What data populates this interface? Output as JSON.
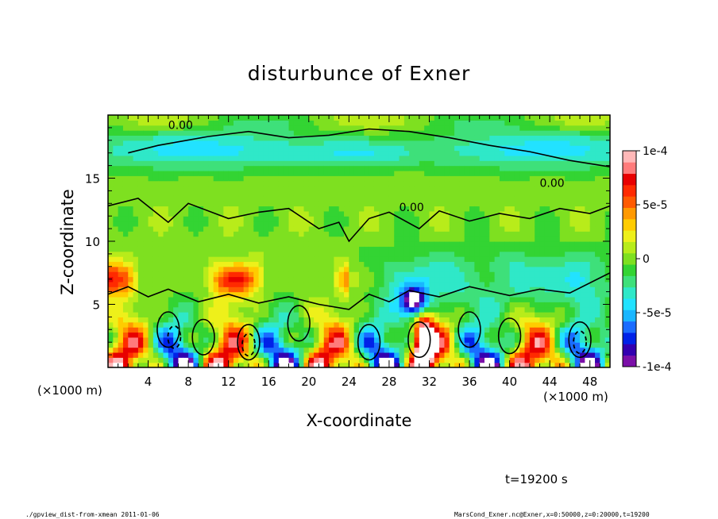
{
  "chart_data": {
    "type": "heatmap",
    "title": "disturbunce of Exner",
    "xlabel": "X-coordinate",
    "ylabel": "Z-coordinate",
    "x_units": "(×1000 m)",
    "y_units": "(×1000 m)",
    "xlim": [
      0,
      50
    ],
    "ylim": [
      0,
      20
    ],
    "x_ticks": [
      4,
      8,
      12,
      16,
      20,
      24,
      28,
      32,
      36,
      40,
      44,
      48
    ],
    "y_ticks": [
      5,
      10,
      15
    ],
    "colorbar": {
      "range": [
        -0.0001,
        0.0001
      ],
      "labels": [
        {
          "value": 0.0001,
          "text": "1e-4"
        },
        {
          "value": 5e-05,
          "text": "5e-5"
        },
        {
          "value": 0,
          "text": "0"
        },
        {
          "value": -5e-05,
          "text": "-5e-5"
        },
        {
          "value": -0.0001,
          "text": "-1e-4"
        }
      ],
      "colors": [
        "#7b0fa8",
        "#3300b0",
        "#0022e8",
        "#1a6cff",
        "#19b6ff",
        "#22e2ff",
        "#2fe8c8",
        "#3ee07a",
        "#33d433",
        "#7ee020",
        "#b8ec1a",
        "#eef01a",
        "#ffcc00",
        "#ff9900",
        "#ff5a00",
        "#ff2a00",
        "#e80000",
        "#ff7b7b",
        "#ffb8b8"
      ]
    },
    "contour_label": "0.00",
    "features": [
      {
        "kind": "negative band",
        "z_range": [
          15.5,
          19
        ],
        "value": -4e-05
      },
      {
        "kind": "positive cells",
        "z_range": [
          0,
          5
        ],
        "value": 0.0001
      },
      {
        "kind": "negative cells",
        "z_range": [
          0,
          4
        ],
        "value": -0.0001
      }
    ]
  },
  "footer": {
    "time": "t=19200 s",
    "script": "./gpview_dist-from-xmean  2011-01-06",
    "source": "MarsCond_Exner.nc@Exner,x=0:50000,z=0:20000,t=19200"
  },
  "colors": {
    "frame": "#000000",
    "background": "#ffffff",
    "base_green": "#33d433"
  }
}
